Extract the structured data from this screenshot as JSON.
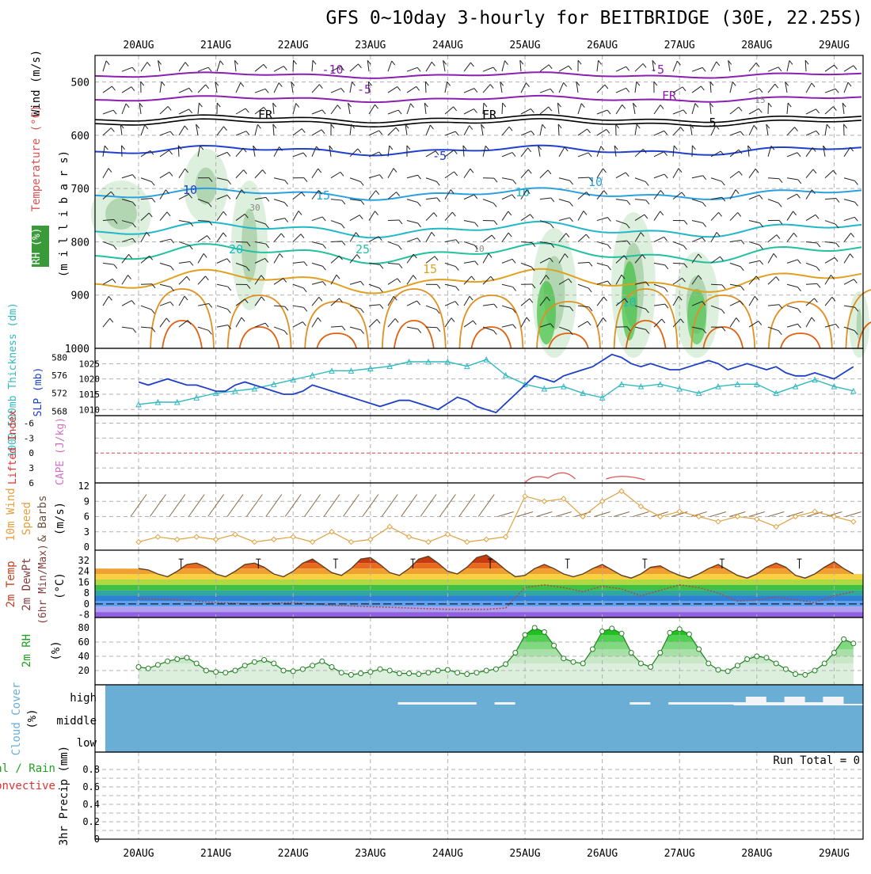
{
  "title": "GFS 0~10day 3-hourly for BEITBRIDGE (30E, 22.25S)",
  "dates": [
    "20AUG",
    "21AUG",
    "22AUG",
    "23AUG",
    "24AUG",
    "25AUG",
    "26AUG",
    "27AUG",
    "28AUG",
    "29AUG"
  ],
  "colors": {
    "frame": "#000000",
    "grid": "#b0b0b0",
    "slp": "#1e3fc8",
    "thickness": "#30b8c0",
    "li_zero": "#e04040",
    "cape": "#e05050",
    "wind_speed": "#e0a040",
    "wind_barb": "#8a6a48",
    "temp_fill_hot": "#c83a10",
    "dewpoint": "#a05050",
    "rh2m": "#20a020",
    "cloud": "#6aaed6",
    "precip": "#20a020"
  },
  "panels": {
    "upper": {
      "ylabel_wind": "Wind (m/s)",
      "ylabel_temp": "Temperature (°C)",
      "ylabel_rh": "RH (%)",
      "ylabel_pressure": "(m i l l i b a r s)",
      "yticks": [
        "500",
        "600",
        "700",
        "800",
        "900",
        "1000"
      ],
      "temp_labels": [
        "-10",
        "-5",
        "FR",
        "-5",
        "10",
        "15",
        "20",
        "25",
        "15",
        "-10",
        "-5",
        "FR",
        "FR",
        "5",
        "10",
        "10",
        "30",
        "10",
        "15"
      ]
    },
    "slp": {
      "ylabel_thick": "1000-500mb Thickness (dm)",
      "ylabel_slp": "SLP (mb)",
      "thick_ticks": [
        "580",
        "576",
        "572",
        "568"
      ],
      "slp_ticks": [
        "1025",
        "1020",
        "1015",
        "1010"
      ]
    },
    "li": {
      "ylabel_li": "Lifted Index",
      "ylabel_cape": "CAPE (J/kg)",
      "yticks": [
        "-6",
        "-3",
        "0",
        "3",
        "6"
      ]
    },
    "wind10": {
      "ylabel1": "10m Wind",
      "ylabel2": "Speed",
      "ylabel3": "& Barbs",
      "ylabel_unit": "(m/s)",
      "yticks": [
        "12",
        "9",
        "6",
        "3",
        "0"
      ]
    },
    "temp2m": {
      "ylabel1": "2m Temp",
      "ylabel2": "2m DewPt",
      "ylabel3": "(6hr Min/Max)",
      "ylabel_unit": "(°C)",
      "yticks": [
        "32",
        "24",
        "16",
        "8",
        "0",
        "-8"
      ]
    },
    "rh2m": {
      "ylabel": "2m RH",
      "ylabel_unit": "(%)",
      "yticks": [
        "80",
        "60",
        "40",
        "20"
      ]
    },
    "cloud": {
      "ylabel": "Cloud Cover",
      "ylabel_unit": "(%)",
      "levels": [
        "high",
        "middle",
        "low"
      ]
    },
    "precip": {
      "ylabel1": "Total / Rain",
      "ylabel2": "Convective",
      "ylabel3": "3hr Precip (mm)",
      "yticks": [
        "0.8",
        "0.6",
        "0.4",
        "0.2",
        "0"
      ],
      "run_total": "Run Total = 0"
    }
  },
  "chart_data": [
    {
      "type": "line",
      "name": "SLP",
      "units": "mb",
      "x_days": [
        0,
        0.125,
        0.25,
        0.375,
        0.5,
        0.625,
        0.75,
        0.875,
        1,
        1.125,
        1.25,
        1.375,
        1.5,
        1.625,
        1.75,
        1.875,
        2,
        2.125,
        2.25,
        2.375,
        2.5,
        2.625,
        2.75,
        2.875,
        3,
        3.125,
        3.25,
        3.375,
        3.5,
        3.625,
        3.75,
        3.875,
        4,
        4.125,
        4.25,
        4.375,
        4.5,
        4.625,
        4.75,
        4.875,
        5,
        5.125,
        5.25,
        5.375,
        5.5,
        5.625,
        5.75,
        5.875,
        6,
        6.125,
        6.25,
        6.375,
        6.5,
        6.625,
        6.75,
        6.875,
        7,
        7.125,
        7.25,
        7.375,
        7.5,
        7.625,
        7.75,
        7.875,
        8,
        8.125,
        8.25,
        8.375,
        8.5,
        8.625,
        8.75,
        8.875,
        9,
        9.125,
        9.25
      ],
      "values": [
        1019,
        1018,
        1019,
        1020,
        1019,
        1018,
        1018,
        1017,
        1016,
        1016,
        1018,
        1019,
        1018,
        1017,
        1016,
        1015,
        1015,
        1016,
        1018,
        1017,
        1016,
        1015,
        1014,
        1013,
        1012,
        1011,
        1012,
        1013,
        1013,
        1012,
        1011,
        1010,
        1012,
        1014,
        1013,
        1011,
        1010,
        1009,
        1012,
        1015,
        1018,
        1021,
        1020,
        1019,
        1021,
        1022,
        1023,
        1024,
        1026,
        1028,
        1027,
        1025,
        1024,
        1025,
        1024,
        1023,
        1023,
        1024,
        1025,
        1026,
        1025,
        1023,
        1024,
        1025,
        1024,
        1023,
        1024,
        1022,
        1021,
        1021,
        1022,
        1021,
        1020,
        1022,
        1024
      ]
    },
    {
      "type": "line",
      "name": "1000-500mb Thickness",
      "units": "dm",
      "x_days": [
        0,
        0.25,
        0.5,
        0.75,
        1,
        1.25,
        1.5,
        1.75,
        2,
        2.25,
        2.5,
        2.75,
        3,
        3.25,
        3.5,
        3.75,
        4,
        4.25,
        4.5,
        4.75,
        5,
        5.25,
        5.5,
        5.75,
        6,
        6.25,
        6.5,
        6.75,
        7,
        7.25,
        7.5,
        7.75,
        8,
        8.25,
        8.5,
        8.75,
        9,
        9.25
      ],
      "values": [
        569.5,
        570,
        570,
        571,
        572,
        572.5,
        573,
        574,
        575,
        576,
        577,
        577,
        577.5,
        578,
        579,
        579,
        579,
        578,
        579.5,
        576,
        574,
        573,
        573.5,
        572,
        571,
        574,
        573.5,
        574,
        573,
        572,
        573.5,
        574,
        574,
        572,
        573.5,
        575,
        573.5,
        572.5
      ]
    },
    {
      "type": "line",
      "name": "10m Wind Speed",
      "units": "m/s",
      "x_days": [
        0,
        0.25,
        0.5,
        0.75,
        1,
        1.25,
        1.5,
        1.75,
        2,
        2.25,
        2.5,
        2.75,
        3,
        3.25,
        3.5,
        3.75,
        4,
        4.25,
        4.5,
        4.75,
        5,
        5.25,
        5.5,
        5.75,
        6,
        6.25,
        6.5,
        6.75,
        7,
        7.25,
        7.5,
        7.75,
        8,
        8.25,
        8.5,
        8.75,
        9,
        9.25
      ],
      "values": [
        1,
        2,
        1.5,
        2,
        1.5,
        2.5,
        1,
        1.5,
        2,
        1,
        3,
        1,
        1.5,
        4,
        2,
        1,
        2.5,
        1,
        1.5,
        2,
        10,
        9,
        9.5,
        6,
        9,
        11,
        8,
        6,
        7,
        6,
        5,
        6,
        5.5,
        4,
        6,
        7,
        6,
        5
      ]
    },
    {
      "type": "line",
      "name": "2m Temp",
      "units": "°C",
      "x_days": [
        0,
        0.125,
        0.25,
        0.375,
        0.5,
        0.625,
        0.75,
        0.875,
        1,
        1.125,
        1.25,
        1.375,
        1.5,
        1.625,
        1.75,
        1.875,
        2,
        2.125,
        2.25,
        2.375,
        2.5,
        2.625,
        2.75,
        2.875,
        3,
        3.125,
        3.25,
        3.375,
        3.5,
        3.625,
        3.75,
        3.875,
        4,
        4.125,
        4.25,
        4.375,
        4.5,
        4.625,
        4.75,
        4.875,
        5,
        5.125,
        5.25,
        5.375,
        5.5,
        5.625,
        5.75,
        5.875,
        6,
        6.125,
        6.25,
        6.375,
        6.5,
        6.625,
        6.75,
        6.875,
        7,
        7.125,
        7.25,
        7.375,
        7.5,
        7.625,
        7.75,
        7.875,
        8,
        8.125,
        8.25,
        8.375,
        8.5,
        8.625,
        8.75,
        8.875,
        9,
        9.125,
        9.25
      ],
      "values": [
        26,
        25,
        22,
        20,
        24,
        29,
        30,
        27,
        22,
        20,
        24,
        29,
        30,
        27,
        22,
        20,
        24,
        30,
        33,
        28,
        23,
        21,
        26,
        33,
        34,
        29,
        23,
        21,
        26,
        33,
        35,
        30,
        24,
        22,
        27,
        34,
        36,
        31,
        25,
        20,
        21,
        26,
        29,
        26,
        22,
        20,
        22,
        26,
        29,
        25,
        21,
        19,
        22,
        27,
        28,
        24,
        21,
        19,
        22,
        26,
        29,
        25,
        21,
        19,
        22,
        27,
        30,
        27,
        21,
        19,
        22,
        27,
        31,
        26,
        22
      ]
    },
    {
      "type": "line",
      "name": "2m DewPt",
      "units": "°C",
      "x_days": [
        0,
        0.5,
        1,
        1.5,
        2,
        2.5,
        3,
        3.5,
        4,
        4.5,
        4.75,
        5,
        5.25,
        5.5,
        5.75,
        6,
        6.25,
        6.5,
        6.75,
        7,
        7.25,
        7.5,
        7.75,
        8,
        8.25,
        8.5,
        8.75,
        9,
        9.25
      ],
      "values": [
        4,
        3,
        1,
        0,
        1,
        -1,
        -2,
        -3,
        -4,
        -4,
        -3,
        12,
        14,
        12,
        9,
        13,
        11,
        6,
        10,
        14,
        12,
        8,
        2,
        3,
        5,
        3,
        1,
        6,
        9
      ]
    },
    {
      "type": "area",
      "name": "2m RH",
      "units": "%",
      "x_days": [
        0,
        0.125,
        0.25,
        0.375,
        0.5,
        0.625,
        0.75,
        0.875,
        1,
        1.125,
        1.25,
        1.375,
        1.5,
        1.625,
        1.75,
        1.875,
        2,
        2.125,
        2.25,
        2.375,
        2.5,
        2.625,
        2.75,
        2.875,
        3,
        3.125,
        3.25,
        3.375,
        3.5,
        3.625,
        3.75,
        3.875,
        4,
        4.125,
        4.25,
        4.375,
        4.5,
        4.625,
        4.75,
        4.875,
        5,
        5.125,
        5.25,
        5.375,
        5.5,
        5.625,
        5.75,
        5.875,
        6,
        6.125,
        6.25,
        6.375,
        6.5,
        6.625,
        6.75,
        6.875,
        7,
        7.125,
        7.25,
        7.375,
        7.5,
        7.625,
        7.75,
        7.875,
        8,
        8.125,
        8.25,
        8.375,
        8.5,
        8.625,
        8.75,
        8.875,
        9,
        9.125,
        9.25
      ],
      "values": [
        25,
        23,
        28,
        33,
        36,
        38,
        30,
        20,
        18,
        17,
        20,
        27,
        32,
        35,
        30,
        20,
        19,
        22,
        27,
        33,
        25,
        17,
        14,
        16,
        18,
        22,
        20,
        16,
        16,
        15,
        17,
        20,
        21,
        17,
        15,
        17,
        20,
        22,
        29,
        45,
        70,
        80,
        74,
        55,
        37,
        32,
        30,
        50,
        75,
        79,
        72,
        45,
        30,
        25,
        45,
        73,
        78,
        71,
        50,
        30,
        21,
        19,
        27,
        36,
        40,
        38,
        30,
        22,
        15,
        14,
        20,
        30,
        45,
        64,
        58
      ]
    },
    {
      "type": "bar",
      "name": "Cloud Cover high",
      "units": "%",
      "x_days": [
        3.5,
        3.75,
        4,
        4.25,
        4.75,
        6.5,
        7,
        7.25,
        7.5,
        7.75,
        8,
        8.25,
        8.5,
        8.75,
        9
      ],
      "values": [
        8,
        8,
        10,
        10,
        8,
        8,
        10,
        10,
        10,
        10,
        80,
        10,
        80,
        10,
        80
      ]
    }
  ]
}
